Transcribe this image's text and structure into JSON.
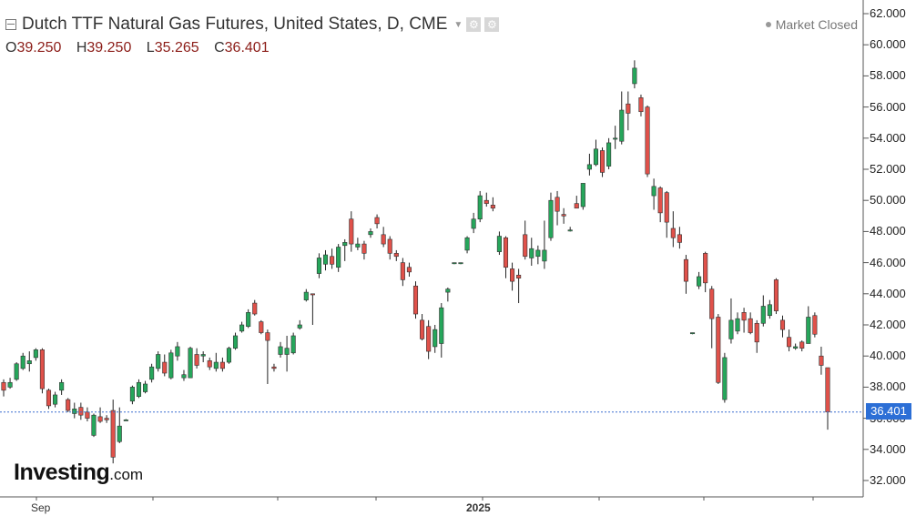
{
  "header": {
    "title": "Dutch TTF Natural Gas Futures, United States, D, CME",
    "o_label": "O",
    "o_value": "39.250",
    "h_label": "H",
    "h_value": "39.250",
    "l_label": "L",
    "l_value": "35.265",
    "c_label": "C",
    "c_value": "36.401",
    "status": "Market Closed"
  },
  "logo": {
    "brand": "Investing",
    "suffix": ".com"
  },
  "chart_data": {
    "type": "candlestick",
    "y_ticks": [
      "62.000",
      "60.000",
      "58.000",
      "56.000",
      "54.000",
      "52.000",
      "50.000",
      "48.000",
      "46.000",
      "44.000",
      "42.000",
      "40.000",
      "38.000",
      "36.000",
      "34.000",
      "32.000"
    ],
    "x_ticks": [
      "Sep",
      "2025"
    ],
    "ylim": [
      31,
      62.6
    ],
    "last_price": 36.401,
    "last_price_label": "36.401",
    "up_color": "#26a65b",
    "down_color": "#e0514a",
    "candles": [
      [
        38.3,
        38.5,
        37.4,
        37.8
      ],
      [
        38.0,
        38.6,
        37.9,
        38.3
      ],
      [
        38.5,
        39.6,
        38.4,
        39.5
      ],
      [
        39.2,
        40.2,
        39.1,
        40.0
      ],
      [
        39.5,
        40.3,
        39.0,
        39.7
      ],
      [
        39.9,
        40.5,
        39.7,
        40.4
      ],
      [
        40.4,
        40.5,
        37.6,
        37.9
      ],
      [
        37.8,
        37.9,
        36.6,
        36.8
      ],
      [
        36.9,
        37.7,
        36.7,
        37.5
      ],
      [
        37.8,
        38.5,
        37.5,
        38.3
      ],
      [
        37.2,
        37.3,
        36.4,
        36.5
      ],
      [
        36.3,
        37.0,
        36.0,
        36.6
      ],
      [
        36.7,
        37.0,
        35.9,
        36.2
      ],
      [
        36.4,
        36.7,
        35.8,
        36.0
      ],
      [
        34.9,
        36.3,
        34.8,
        36.2
      ],
      [
        36.1,
        36.7,
        35.7,
        35.8
      ],
      [
        36.0,
        36.2,
        35.7,
        35.9
      ],
      [
        36.5,
        37.2,
        33.1,
        33.5
      ],
      [
        34.5,
        36.7,
        34.4,
        35.5
      ],
      [
        35.9,
        35.95,
        35.85,
        35.9
      ],
      [
        37.1,
        38.1,
        36.9,
        38.0
      ],
      [
        37.4,
        38.5,
        37.3,
        38.3
      ],
      [
        37.7,
        38.4,
        37.6,
        38.2
      ],
      [
        38.5,
        39.5,
        38.3,
        39.3
      ],
      [
        39.2,
        40.3,
        39.0,
        40.1
      ],
      [
        39.6,
        40.1,
        38.7,
        38.9
      ],
      [
        38.6,
        40.4,
        38.5,
        40.2
      ],
      [
        40.0,
        40.9,
        39.7,
        40.6
      ],
      [
        38.6,
        39.1,
        38.4,
        38.8
      ],
      [
        38.6,
        40.6,
        38.6,
        40.5
      ],
      [
        40.1,
        40.5,
        39.2,
        39.4
      ],
      [
        40.0,
        40.3,
        39.6,
        40.1
      ],
      [
        39.7,
        39.9,
        39.1,
        39.3
      ],
      [
        39.2,
        40.2,
        39.0,
        39.6
      ],
      [
        39.6,
        39.9,
        39.0,
        39.2
      ],
      [
        39.6,
        40.6,
        39.5,
        40.5
      ],
      [
        40.5,
        41.5,
        40.4,
        41.3
      ],
      [
        41.6,
        42.2,
        41.5,
        42.0
      ],
      [
        41.9,
        43.0,
        41.8,
        42.8
      ],
      [
        43.4,
        43.6,
        42.6,
        42.7
      ],
      [
        42.2,
        42.3,
        41.4,
        41.5
      ],
      [
        41.5,
        41.7,
        38.2,
        41.0
      ],
      [
        39.3,
        39.5,
        39.0,
        39.2
      ],
      [
        40.1,
        40.9,
        39.9,
        40.6
      ],
      [
        40.1,
        41.3,
        39.0,
        40.5
      ],
      [
        40.2,
        41.5,
        40.1,
        41.3
      ],
      [
        41.8,
        42.3,
        41.7,
        42.0
      ],
      [
        43.6,
        44.3,
        43.5,
        44.1
      ],
      [
        44.0,
        43.95,
        42.0,
        43.95
      ],
      [
        45.3,
        46.6,
        45.0,
        46.3
      ],
      [
        45.9,
        46.8,
        45.5,
        46.5
      ],
      [
        46.4,
        46.9,
        45.6,
        45.9
      ],
      [
        45.7,
        47.2,
        45.4,
        47.0
      ],
      [
        47.1,
        47.5,
        46.1,
        47.3
      ],
      [
        48.8,
        49.3,
        46.7,
        47.2
      ],
      [
        47.0,
        47.6,
        46.8,
        47.2
      ],
      [
        47.2,
        47.4,
        46.2,
        46.6
      ],
      [
        47.8,
        48.2,
        47.6,
        48.0
      ],
      [
        48.9,
        49.1,
        48.2,
        48.5
      ],
      [
        47.8,
        48.3,
        47.0,
        47.2
      ],
      [
        47.5,
        47.7,
        46.2,
        46.6
      ],
      [
        46.6,
        46.8,
        46.1,
        46.4
      ],
      [
        46.0,
        46.3,
        44.5,
        44.9
      ],
      [
        45.7,
        46.0,
        45.1,
        45.4
      ],
      [
        44.5,
        44.8,
        42.4,
        42.7
      ],
      [
        42.3,
        42.7,
        41.0,
        41.1
      ],
      [
        41.9,
        42.3,
        39.8,
        40.3
      ],
      [
        40.6,
        42.0,
        40.2,
        41.7
      ],
      [
        40.8,
        43.4,
        39.9,
        43.1
      ],
      [
        44.1,
        44.4,
        43.5,
        44.3
      ],
      [
        46.0,
        46.0,
        45.9,
        46.0
      ],
      [
        46.0,
        46.0,
        45.9,
        46.0
      ],
      [
        46.8,
        47.7,
        46.6,
        47.6
      ],
      [
        48.2,
        49.2,
        47.9,
        48.8
      ],
      [
        48.8,
        50.6,
        48.6,
        50.3
      ],
      [
        50.0,
        50.5,
        49.6,
        49.8
      ],
      [
        49.7,
        50.2,
        49.3,
        49.5
      ],
      [
        46.7,
        48.0,
        46.5,
        47.7
      ],
      [
        47.6,
        47.7,
        45.0,
        45.7
      ],
      [
        45.6,
        46.0,
        44.2,
        44.8
      ],
      [
        45.2,
        45.6,
        43.4,
        45.0
      ],
      [
        47.8,
        48.7,
        46.2,
        46.4
      ],
      [
        46.3,
        47.6,
        45.8,
        46.9
      ],
      [
        46.4,
        47.1,
        45.9,
        46.8
      ],
      [
        46.1,
        48.7,
        45.6,
        46.8
      ],
      [
        47.6,
        50.5,
        47.4,
        50.0
      ],
      [
        50.2,
        50.6,
        48.4,
        49.3
      ],
      [
        49.1,
        49.5,
        48.5,
        49.0
      ],
      [
        48.1,
        48.3,
        48.0,
        48.1
      ],
      [
        49.8,
        50.3,
        49.5,
        49.5
      ],
      [
        49.6,
        51.1,
        49.4,
        51.1
      ],
      [
        52.0,
        53.0,
        51.6,
        52.3
      ],
      [
        52.3,
        53.9,
        52.2,
        53.3
      ],
      [
        53.2,
        53.4,
        51.5,
        51.8
      ],
      [
        52.2,
        54.0,
        52.0,
        53.7
      ],
      [
        54.0,
        54.8,
        53.3,
        54.0
      ],
      [
        53.8,
        57.0,
        53.6,
        55.8
      ],
      [
        56.2,
        57.0,
        54.5,
        55.6
      ],
      [
        57.5,
        59.0,
        57.2,
        58.5
      ],
      [
        56.6,
        56.8,
        55.4,
        55.7
      ],
      [
        56.0,
        56.1,
        51.5,
        51.7
      ],
      [
        50.3,
        51.4,
        49.4,
        50.9
      ],
      [
        50.8,
        50.9,
        48.6,
        49.2
      ],
      [
        50.5,
        50.6,
        47.6,
        48.6
      ],
      [
        48.2,
        49.3,
        47.0,
        47.6
      ],
      [
        47.8,
        48.3,
        46.9,
        47.3
      ],
      [
        46.2,
        46.5,
        44.0,
        44.8
      ],
      [
        41.5,
        41.5,
        41.4,
        41.5
      ],
      [
        44.5,
        45.4,
        44.3,
        45.1
      ],
      [
        46.6,
        46.7,
        44.1,
        44.7
      ],
      [
        44.3,
        44.5,
        40.5,
        42.4
      ],
      [
        42.5,
        42.7,
        38.2,
        38.3
      ],
      [
        37.2,
        40.2,
        37.0,
        39.9
      ],
      [
        41.1,
        43.7,
        40.8,
        42.3
      ],
      [
        41.6,
        42.8,
        41.4,
        42.4
      ],
      [
        42.8,
        43.1,
        41.5,
        42.3
      ],
      [
        42.4,
        42.8,
        41.4,
        41.5
      ],
      [
        42.1,
        42.3,
        40.2,
        40.9
      ],
      [
        42.1,
        43.9,
        41.9,
        43.2
      ],
      [
        42.6,
        43.6,
        42.4,
        43.3
      ],
      [
        44.9,
        45.0,
        42.7,
        42.9
      ],
      [
        42.3,
        42.6,
        41.2,
        41.7
      ],
      [
        41.2,
        41.7,
        40.3,
        40.6
      ],
      [
        40.5,
        40.8,
        40.4,
        40.6
      ],
      [
        40.9,
        41.0,
        40.3,
        40.5
      ],
      [
        40.8,
        43.2,
        40.8,
        42.5
      ],
      [
        42.6,
        42.8,
        41.2,
        41.4
      ],
      [
        40.0,
        40.6,
        38.8,
        39.4
      ],
      [
        39.25,
        39.25,
        35.265,
        36.401
      ]
    ]
  }
}
